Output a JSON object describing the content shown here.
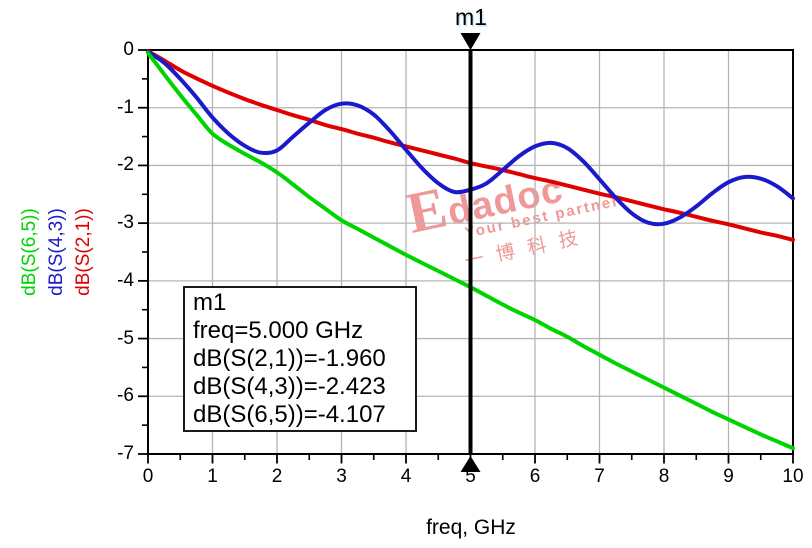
{
  "chart_data": {
    "type": "line",
    "title": "",
    "xlabel": "freq, GHz",
    "ylabel": "",
    "xlim": [
      0,
      10
    ],
    "ylim": [
      -7,
      0
    ],
    "x_ticks": [
      0,
      1,
      2,
      3,
      4,
      5,
      6,
      7,
      8,
      9,
      10
    ],
    "y_ticks": [
      0,
      -1,
      -2,
      -3,
      -4,
      -5,
      -6,
      -7
    ],
    "minor_tick_step": 0.5,
    "grid": true,
    "grid_color": "#b5b5b5",
    "x": [
      0,
      0.25,
      0.5,
      0.75,
      1,
      1.25,
      1.5,
      1.75,
      2,
      2.25,
      2.5,
      2.75,
      3,
      3.25,
      3.5,
      3.75,
      4,
      4.25,
      4.5,
      4.75,
      5,
      5.25,
      5.5,
      5.75,
      6,
      6.25,
      6.5,
      6.75,
      7,
      7.25,
      7.5,
      7.75,
      8,
      8.25,
      8.5,
      8.75,
      9,
      9.25,
      9.5,
      9.75,
      10
    ],
    "series": [
      {
        "name": "dB(S(2,1))",
        "color": "#e00000",
        "values": [
          -0.02,
          -0.18,
          -0.35,
          -0.49,
          -0.62,
          -0.74,
          -0.85,
          -0.95,
          -1.04,
          -1.13,
          -1.21,
          -1.3,
          -1.37,
          -1.45,
          -1.52,
          -1.6,
          -1.67,
          -1.74,
          -1.81,
          -1.88,
          -1.96,
          -2.02,
          -2.08,
          -2.15,
          -2.22,
          -2.28,
          -2.35,
          -2.42,
          -2.49,
          -2.55,
          -2.62,
          -2.69,
          -2.76,
          -2.82,
          -2.89,
          -2.96,
          -3.02,
          -3.09,
          -3.16,
          -3.22,
          -3.29
        ]
      },
      {
        "name": "dB(S(4,3))",
        "color": "#1a1acc",
        "values": [
          -0.03,
          -0.22,
          -0.5,
          -0.82,
          -1.17,
          -1.45,
          -1.66,
          -1.78,
          -1.74,
          -1.5,
          -1.26,
          -1.04,
          -0.93,
          -0.96,
          -1.12,
          -1.4,
          -1.73,
          -2.05,
          -2.31,
          -2.46,
          -2.42,
          -2.31,
          -2.08,
          -1.84,
          -1.67,
          -1.61,
          -1.7,
          -1.93,
          -2.24,
          -2.56,
          -2.83,
          -2.99,
          -3.01,
          -2.9,
          -2.71,
          -2.48,
          -2.29,
          -2.2,
          -2.23,
          -2.36,
          -2.57
        ]
      },
      {
        "name": "dB(S(6,5))",
        "color": "#00d400",
        "values": [
          -0.05,
          -0.42,
          -0.78,
          -1.12,
          -1.45,
          -1.64,
          -1.8,
          -1.95,
          -2.12,
          -2.33,
          -2.55,
          -2.75,
          -2.95,
          -3.1,
          -3.25,
          -3.4,
          -3.55,
          -3.69,
          -3.83,
          -3.97,
          -4.11,
          -4.26,
          -4.41,
          -4.55,
          -4.68,
          -4.83,
          -4.97,
          -5.13,
          -5.28,
          -5.43,
          -5.57,
          -5.71,
          -5.85,
          -5.99,
          -6.13,
          -6.27,
          -6.4,
          -6.53,
          -6.66,
          -6.78,
          -6.9
        ]
      }
    ],
    "legend_position": "left-rotated",
    "marker": {
      "label": "m1",
      "freq_ghz": 5.0,
      "readout": {
        "dB(S(2,1))": -1.96,
        "dB(S(4,3))": -2.423,
        "dB(S(6,5))": -4.107
      }
    }
  },
  "y_axis_legend": [
    {
      "text": "dB(S(6,5))",
      "color": "#00d400"
    },
    {
      "text": "dB(S(4,3))",
      "color": "#1a1acc"
    },
    {
      "text": "dB(S(2,1))",
      "color": "#e00000"
    }
  ],
  "marker_box": {
    "lines": [
      "m1",
      "freq=5.000 GHz",
      "dB(S(2,1))=-1.960",
      "dB(S(4,3))=-2.423",
      "dB(S(6,5))=-4.107"
    ]
  },
  "watermark": {
    "brand": "Edadoc",
    "tagline": "Your best partner",
    "company": "一博科技",
    "color": "#ee8585"
  }
}
